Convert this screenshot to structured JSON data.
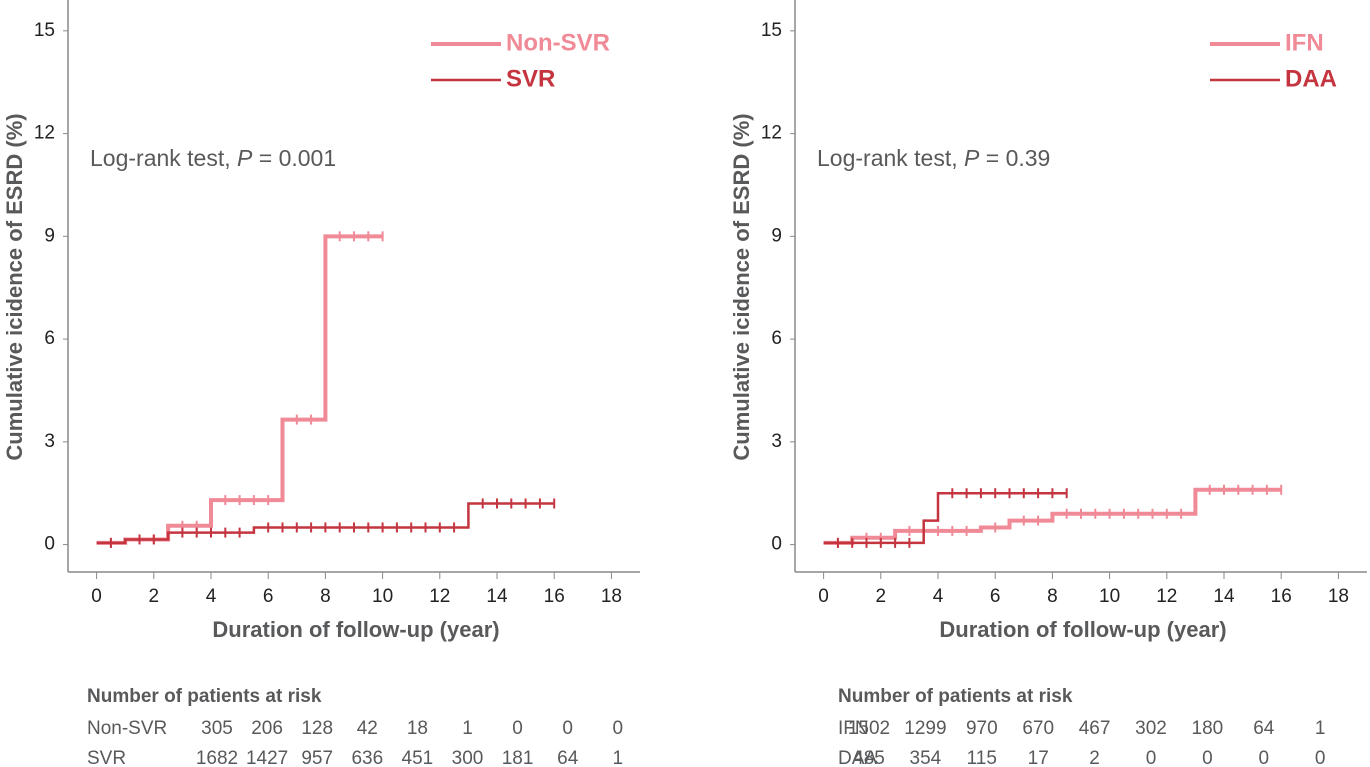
{
  "chart_data": [
    {
      "type": "step",
      "ylabel": "Cumulative icidence of ESRD (%)",
      "xlabel": "Duration of follow-up (year)",
      "annotation": [
        "Log-rank test, ",
        "P",
        " = 0.001"
      ],
      "xlim": [
        -1,
        19
      ],
      "ylim": [
        -0.8,
        15.9
      ],
      "xticks": [
        0,
        2,
        4,
        6,
        8,
        10,
        12,
        14,
        16,
        18
      ],
      "yticks": [
        0,
        3,
        6,
        9,
        12,
        15
      ],
      "legend": "top-right",
      "series": [
        {
          "name": "Non-SVR",
          "color": "#f08a96",
          "x": [
            0,
            1,
            2.5,
            4,
            6.5,
            8,
            10
          ],
          "values": [
            0.05,
            0.15,
            0.55,
            1.3,
            3.65,
            9.0,
            9.0
          ],
          "censored": [
            0.5,
            1.5,
            2,
            3,
            3.5,
            4.5,
            5,
            5.5,
            6,
            7,
            7.5,
            8.5,
            9,
            9.5,
            10
          ]
        },
        {
          "name": "SVR",
          "color": "#c43540",
          "x": [
            0,
            1,
            2.5,
            5.5,
            13,
            16
          ],
          "values": [
            0.05,
            0.15,
            0.35,
            0.5,
            1.2,
            1.2
          ],
          "censored": [
            0.5,
            1.5,
            2,
            3,
            3.5,
            4,
            4.5,
            5,
            6,
            6.5,
            7,
            7.5,
            8,
            8.5,
            9,
            9.5,
            10,
            10.5,
            11,
            11.5,
            12,
            12.5,
            13.5,
            14,
            14.5,
            15,
            15.5,
            16
          ]
        }
      ],
      "risk_table": {
        "title": "Number of patients at risk",
        "rows": [
          {
            "name": "Non-SVR",
            "values": [
              305,
              206,
              128,
              42,
              18,
              1,
              0,
              0,
              0
            ]
          },
          {
            "name": "SVR",
            "values": [
              1682,
              1427,
              957,
              636,
              451,
              300,
              181,
              64,
              1
            ]
          }
        ]
      }
    },
    {
      "type": "step",
      "ylabel": "Cumulative icidence of ESRD (%)",
      "xlabel": "Duration of follow-up (year)",
      "annotation": [
        "Log-rank test, ",
        "P",
        " = 0.39"
      ],
      "xlim": [
        -1,
        19
      ],
      "ylim": [
        -0.8,
        15.9
      ],
      "xticks": [
        0,
        2,
        4,
        6,
        8,
        10,
        12,
        14,
        16,
        18
      ],
      "yticks": [
        0,
        3,
        6,
        9,
        12,
        15
      ],
      "legend": "top-right",
      "series": [
        {
          "name": "IFN",
          "color": "#f08a96",
          "x": [
            0,
            1,
            2.5,
            5.5,
            6.5,
            8,
            13,
            16
          ],
          "values": [
            0.05,
            0.2,
            0.4,
            0.5,
            0.7,
            0.9,
            1.6,
            1.6
          ],
          "censored": [
            0.5,
            1.5,
            2,
            3,
            3.5,
            4,
            4.5,
            5,
            6,
            7,
            7.5,
            8.5,
            9,
            9.5,
            10,
            10.5,
            11,
            11.5,
            12,
            12.5,
            13.5,
            14,
            14.5,
            15,
            15.5,
            16
          ]
        },
        {
          "name": "DAA",
          "color": "#c43540",
          "x": [
            0,
            3.5,
            4,
            8.5
          ],
          "values": [
            0.05,
            0.7,
            1.5,
            1.5
          ],
          "censored": [
            0.5,
            1,
            1.5,
            2,
            2.5,
            3,
            4.5,
            5,
            5.5,
            6,
            6.5,
            7,
            7.5,
            8,
            8.5
          ]
        }
      ],
      "risk_table": {
        "title": "Number of patients at risk",
        "rows": [
          {
            "name": "IFN",
            "values": [
              1502,
              1299,
              970,
              670,
              467,
              302,
              180,
              64,
              1
            ]
          },
          {
            "name": "DAA",
            "values": [
              485,
              354,
              115,
              17,
              2,
              0,
              0,
              0,
              0
            ]
          }
        ]
      }
    }
  ]
}
